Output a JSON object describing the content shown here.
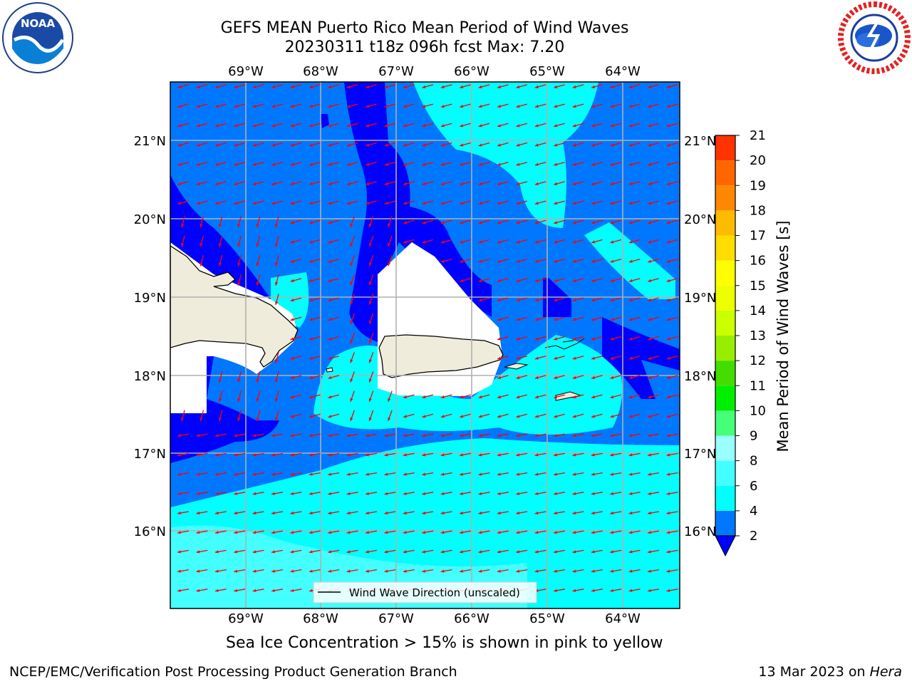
{
  "header": {
    "title_line1": "GEFS MEAN Puerto Rico Mean Period of Wind Waves",
    "title_line2": "20230311 t18z 096h fcst   Max: 7.20"
  },
  "map": {
    "lon_ticks": [
      "69°W",
      "68°W",
      "67°W",
      "66°W",
      "65°W",
      "64°W"
    ],
    "lat_ticks_left": [
      "21°N",
      "20°N",
      "19°N",
      "18°N",
      "17°N",
      "16°N"
    ],
    "lat_ticks_right": [
      "21°N",
      "20°N",
      "19°N",
      "18°N",
      "17°N",
      "16°N"
    ],
    "legend_label": "Wind Wave Direction (unscaled)",
    "land_color": "#efecdc",
    "arrow_color": "#ff0000"
  },
  "colorbar": {
    "label": "Mean Period of Wind Waves [s]",
    "ticks": [
      "2",
      "4",
      "6",
      "8",
      "9",
      "10",
      "11",
      "12",
      "13",
      "14",
      "15",
      "16",
      "17",
      "18",
      "19",
      "20",
      "21"
    ],
    "colors": [
      "#0077ff",
      "#00ffff",
      "#44ffff",
      "#99ffff",
      "#44ff77",
      "#00ee00",
      "#44dd00",
      "#99ee00",
      "#ccff00",
      "#eeff00",
      "#ffff00",
      "#ffdd00",
      "#ffbb00",
      "#ff8800",
      "#ff6600",
      "#ff3300"
    ],
    "extend_color": "#0000ff"
  },
  "footer": {
    "caption": "Sea Ice Concentration > 15% is shown in pink to yellow",
    "left": "NCEP/EMC/Verification Post Processing Product Generation Branch",
    "right_date": "13 Mar 2023 on ",
    "right_host": "Hera"
  },
  "logos": {
    "noaa_text": "NOAA",
    "nws_text": "NATIONAL WEATHER SERVICE"
  }
}
